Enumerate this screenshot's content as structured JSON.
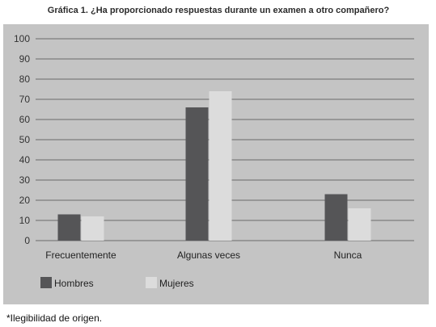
{
  "chart_data": {
    "type": "bar",
    "title": "Gráfica 1. ¿Ha proporcionado respuestas durante un examen a otro compañero?",
    "categories": [
      "Frecuentemente",
      "Algunas veces",
      "Nunca"
    ],
    "series": [
      {
        "name": "Hombres",
        "values": [
          13,
          66,
          23
        ],
        "color": "#555557"
      },
      {
        "name": "Mujeres",
        "values": [
          12,
          74,
          16
        ],
        "color": "#dcdcdc"
      }
    ],
    "ylim": [
      0,
      100
    ],
    "yticks": [
      0,
      10,
      20,
      30,
      40,
      50,
      60,
      70,
      80,
      90,
      100
    ],
    "grid": true,
    "legend_position": "bottom-left",
    "background_color": "#c4c4c4",
    "gridline_color": "#6a6a6a"
  },
  "footnote": "*Ilegibilidad de origen."
}
